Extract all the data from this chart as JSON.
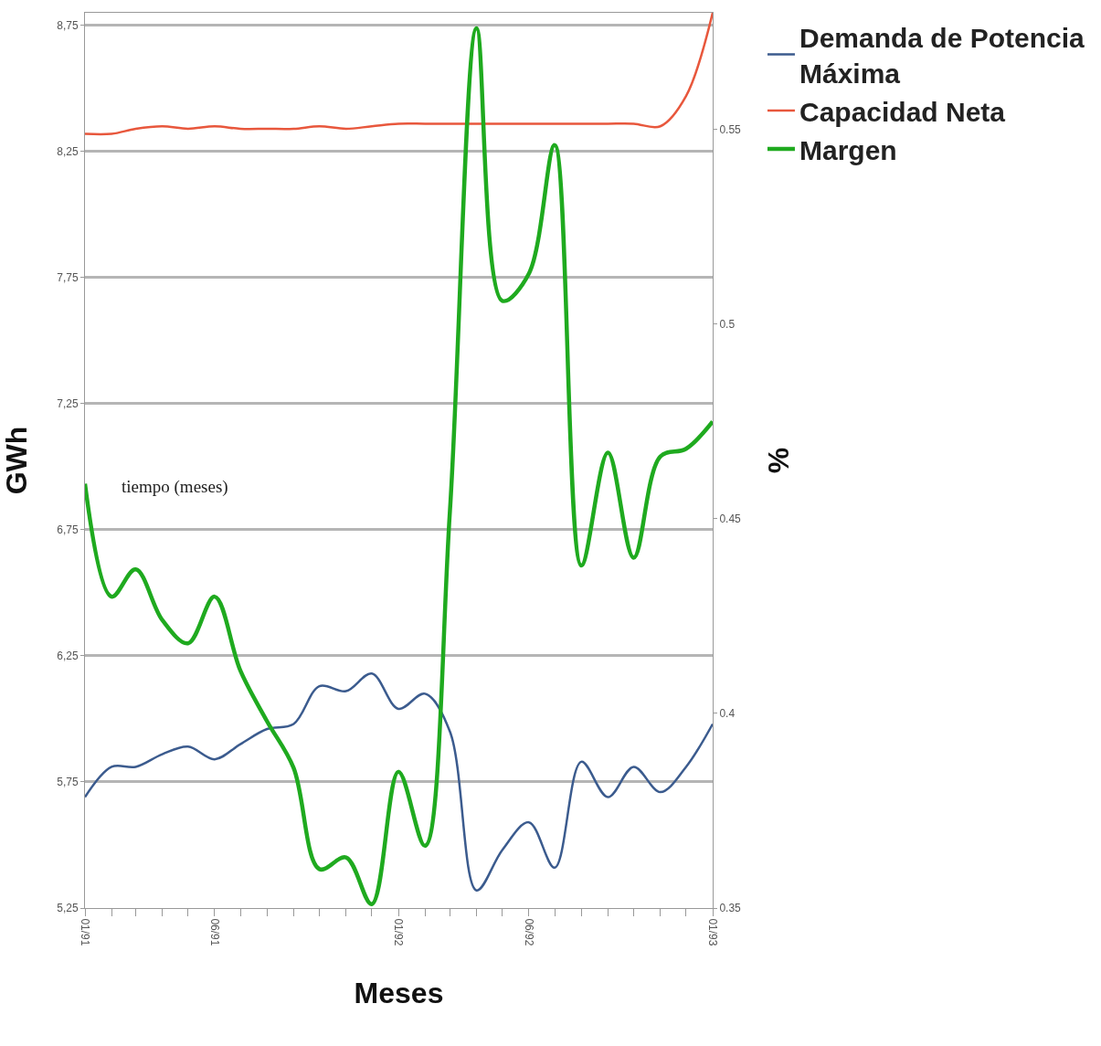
{
  "chart_data": {
    "type": "line",
    "xlabel": "Meses",
    "ylabel": "GWh",
    "y2label": "%",
    "x": [
      "1991-01",
      "1991-02",
      "1991-03",
      "1991-04",
      "1991-05",
      "1991-06",
      "1991-07",
      "1991-08",
      "1991-09",
      "1991-10",
      "1991-11",
      "1991-12",
      "1992-01",
      "1992-02",
      "1992-03",
      "1992-04",
      "1992-05",
      "1992-06",
      "1992-07",
      "1992-08",
      "1992-09",
      "1992-10",
      "1992-11",
      "1992-12",
      "1993-01"
    ],
    "series": [
      {
        "name": "Demanda de Potencia Máxima",
        "color": "#3b5b8e",
        "values": [
          5.69,
          5.81,
          5.81,
          5.86,
          5.89,
          5.84,
          5.9,
          5.96,
          5.98,
          6.13,
          6.11,
          6.18,
          6.04,
          6.1,
          5.95,
          5.32,
          5.48,
          5.59,
          5.41,
          5.83,
          5.69,
          5.81,
          5.71,
          5.81,
          5.98
        ]
      },
      {
        "name": "Capacidad Neta",
        "color": "#e8573c",
        "values": [
          8.32,
          8.32,
          8.34,
          8.35,
          8.34,
          8.35,
          8.34,
          8.34,
          8.34,
          8.35,
          8.34,
          8.35,
          8.36,
          8.36,
          8.36,
          8.36,
          8.36,
          8.36,
          8.36,
          8.36,
          8.36,
          8.36,
          8.35,
          8.47,
          8.8
        ]
      },
      {
        "name": "Margen",
        "color": "#1faa1f",
        "axis": "y2",
        "values": [
          0.459,
          0.43,
          0.437,
          0.424,
          0.418,
          0.43,
          0.411,
          0.398,
          0.386,
          0.36,
          0.363,
          0.351,
          0.385,
          0.366,
          0.452,
          0.576,
          0.506,
          0.513,
          0.546,
          0.438,
          0.467,
          0.44,
          0.466,
          0.468,
          0.475
        ]
      }
    ],
    "xlim": [
      "1991-01",
      "1993-01"
    ],
    "xticks": [
      {
        "value": "1991-01",
        "label": "01/91"
      },
      {
        "value": "1991-02",
        "label": null
      },
      {
        "value": "1991-03",
        "label": null
      },
      {
        "value": "1991-04",
        "label": null
      },
      {
        "value": "1991-05",
        "label": null
      },
      {
        "value": "1991-06",
        "label": "06/91"
      },
      {
        "value": "1991-07",
        "label": null
      },
      {
        "value": "1991-08",
        "label": null
      },
      {
        "value": "1991-09",
        "label": null
      },
      {
        "value": "1991-10",
        "label": null
      },
      {
        "value": "1991-11",
        "label": null
      },
      {
        "value": "1991-12",
        "label": null
      },
      {
        "value": "1992-01",
        "label": "01/92"
      },
      {
        "value": "1992-02",
        "label": null
      },
      {
        "value": "1992-03",
        "label": null
      },
      {
        "value": "1992-04",
        "label": null
      },
      {
        "value": "1992-05",
        "label": null
      },
      {
        "value": "1992-06",
        "label": "06/92"
      },
      {
        "value": "1992-07",
        "label": null
      },
      {
        "value": "1992-08",
        "label": null
      },
      {
        "value": "1992-09",
        "label": null
      },
      {
        "value": "1992-10",
        "label": null
      },
      {
        "value": "1992-11",
        "label": null
      },
      {
        "value": "1992-12",
        "label": null
      },
      {
        "value": "1993-01",
        "label": "01/93"
      }
    ],
    "ylim": [
      5.25,
      8.8
    ],
    "yticks": [
      {
        "value": 5.25,
        "label": "5,25"
      },
      {
        "value": 5.75,
        "label": "5,75"
      },
      {
        "value": 6.25,
        "label": "6,25"
      },
      {
        "value": 6.75,
        "label": "6,75"
      },
      {
        "value": 7.25,
        "label": "7,25"
      },
      {
        "value": 7.75,
        "label": "7,75"
      },
      {
        "value": 8.25,
        "label": "8,25"
      },
      {
        "value": 8.75,
        "label": "8,75"
      }
    ],
    "y2lim": [
      0.35,
      0.58
    ],
    "y2ticks": [
      0.35,
      0.4,
      0.45,
      0.5,
      0.55
    ],
    "annotations": [
      "tiempo (meses)"
    ],
    "grid": "y",
    "legend": "top right",
    "marker": "none",
    "line_style": "solid"
  }
}
